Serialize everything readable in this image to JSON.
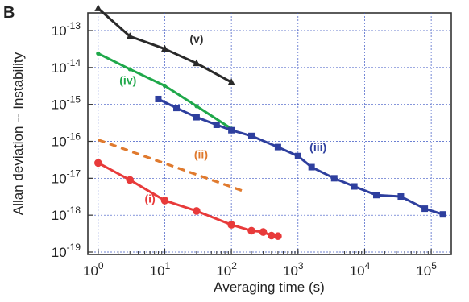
{
  "panel_label": "B",
  "chart_data": {
    "type": "line",
    "xlabel": "Averaging time (s)",
    "ylabel": "Allan deviation -- Instability",
    "xscale": "log",
    "yscale": "log",
    "xlim": [
      0.7,
      200000
    ],
    "ylim": [
      1e-19,
      1e-13
    ],
    "grid": true,
    "x_ticks": [
      {
        "base": "10",
        "exp": "0",
        "value": 1
      },
      {
        "base": "10",
        "exp": "1",
        "value": 10
      },
      {
        "base": "10",
        "exp": "2",
        "value": 100
      },
      {
        "base": "10",
        "exp": "3",
        "value": 1000
      },
      {
        "base": "10",
        "exp": "4",
        "value": 10000
      },
      {
        "base": "10",
        "exp": "5",
        "value": 100000
      }
    ],
    "y_ticks": [
      {
        "base": "10",
        "exp": "-13",
        "value": 1e-13
      },
      {
        "base": "10",
        "exp": "-14",
        "value": 1e-14
      },
      {
        "base": "10",
        "exp": "-15",
        "value": 1e-15
      },
      {
        "base": "10",
        "exp": "-16",
        "value": 1e-16
      },
      {
        "base": "10",
        "exp": "-17",
        "value": 1e-17
      },
      {
        "base": "10",
        "exp": "-18",
        "value": 1e-18
      },
      {
        "base": "10",
        "exp": "-19",
        "value": 1e-19
      }
    ],
    "series": [
      {
        "name": "(v)",
        "color": "#2a2a2a",
        "marker": "triangle",
        "style": "solid",
        "label_at": [
          30,
          6e-14
        ],
        "points": [
          [
            1,
            4e-13
          ],
          [
            3,
            7e-14
          ],
          [
            10,
            3.2e-14
          ],
          [
            30,
            1.3e-14
          ],
          [
            100,
            4e-15
          ]
        ]
      },
      {
        "name": "(iv)",
        "color": "#1fa84a",
        "marker": "dot-small",
        "style": "solid",
        "label_at": [
          2.8,
          4.5e-15
        ],
        "points": [
          [
            1,
            2.4e-14
          ],
          [
            3,
            9e-15
          ],
          [
            10,
            3.2e-15
          ],
          [
            30,
            9e-16
          ],
          [
            100,
            2.2e-16
          ]
        ]
      },
      {
        "name": "(iii)",
        "color": "#2e3f9e",
        "marker": "square",
        "style": "solid",
        "label_at": [
          2000,
          7e-17
        ],
        "points": [
          [
            8,
            1.4e-15
          ],
          [
            15,
            8e-16
          ],
          [
            30,
            4.5e-16
          ],
          [
            60,
            2.8e-16
          ],
          [
            100,
            2e-16
          ],
          [
            200,
            1.4e-16
          ],
          [
            500,
            7e-17
          ],
          [
            1000,
            4e-17
          ],
          [
            1600,
            2e-17
          ],
          [
            3500,
            1e-17
          ],
          [
            7000,
            6e-18
          ],
          [
            15000,
            3.5e-18
          ],
          [
            35000,
            3.2e-18
          ],
          [
            80000,
            1.5e-18
          ],
          [
            150000,
            1.05e-18
          ]
        ]
      },
      {
        "name": "(ii)",
        "color": "#e07a2e",
        "marker": "none",
        "style": "dashed",
        "label_at": [
          35,
          4.5e-17
        ],
        "points": [
          [
            1,
            1.1e-16
          ],
          [
            150,
            4.5e-18
          ]
        ]
      },
      {
        "name": "(i)",
        "color": "#e83a3a",
        "marker": "circle",
        "style": "solid",
        "label_at": [
          6,
          2.8e-18
        ],
        "points": [
          [
            1,
            2.6e-17
          ],
          [
            3,
            9e-18
          ],
          [
            10,
            2.5e-18
          ],
          [
            30,
            1.3e-18
          ],
          [
            100,
            5.5e-19
          ],
          [
            200,
            3.8e-19
          ],
          [
            300,
            3.5e-19
          ],
          [
            400,
            2.8e-19
          ],
          [
            500,
            2.7e-19
          ]
        ]
      }
    ]
  }
}
